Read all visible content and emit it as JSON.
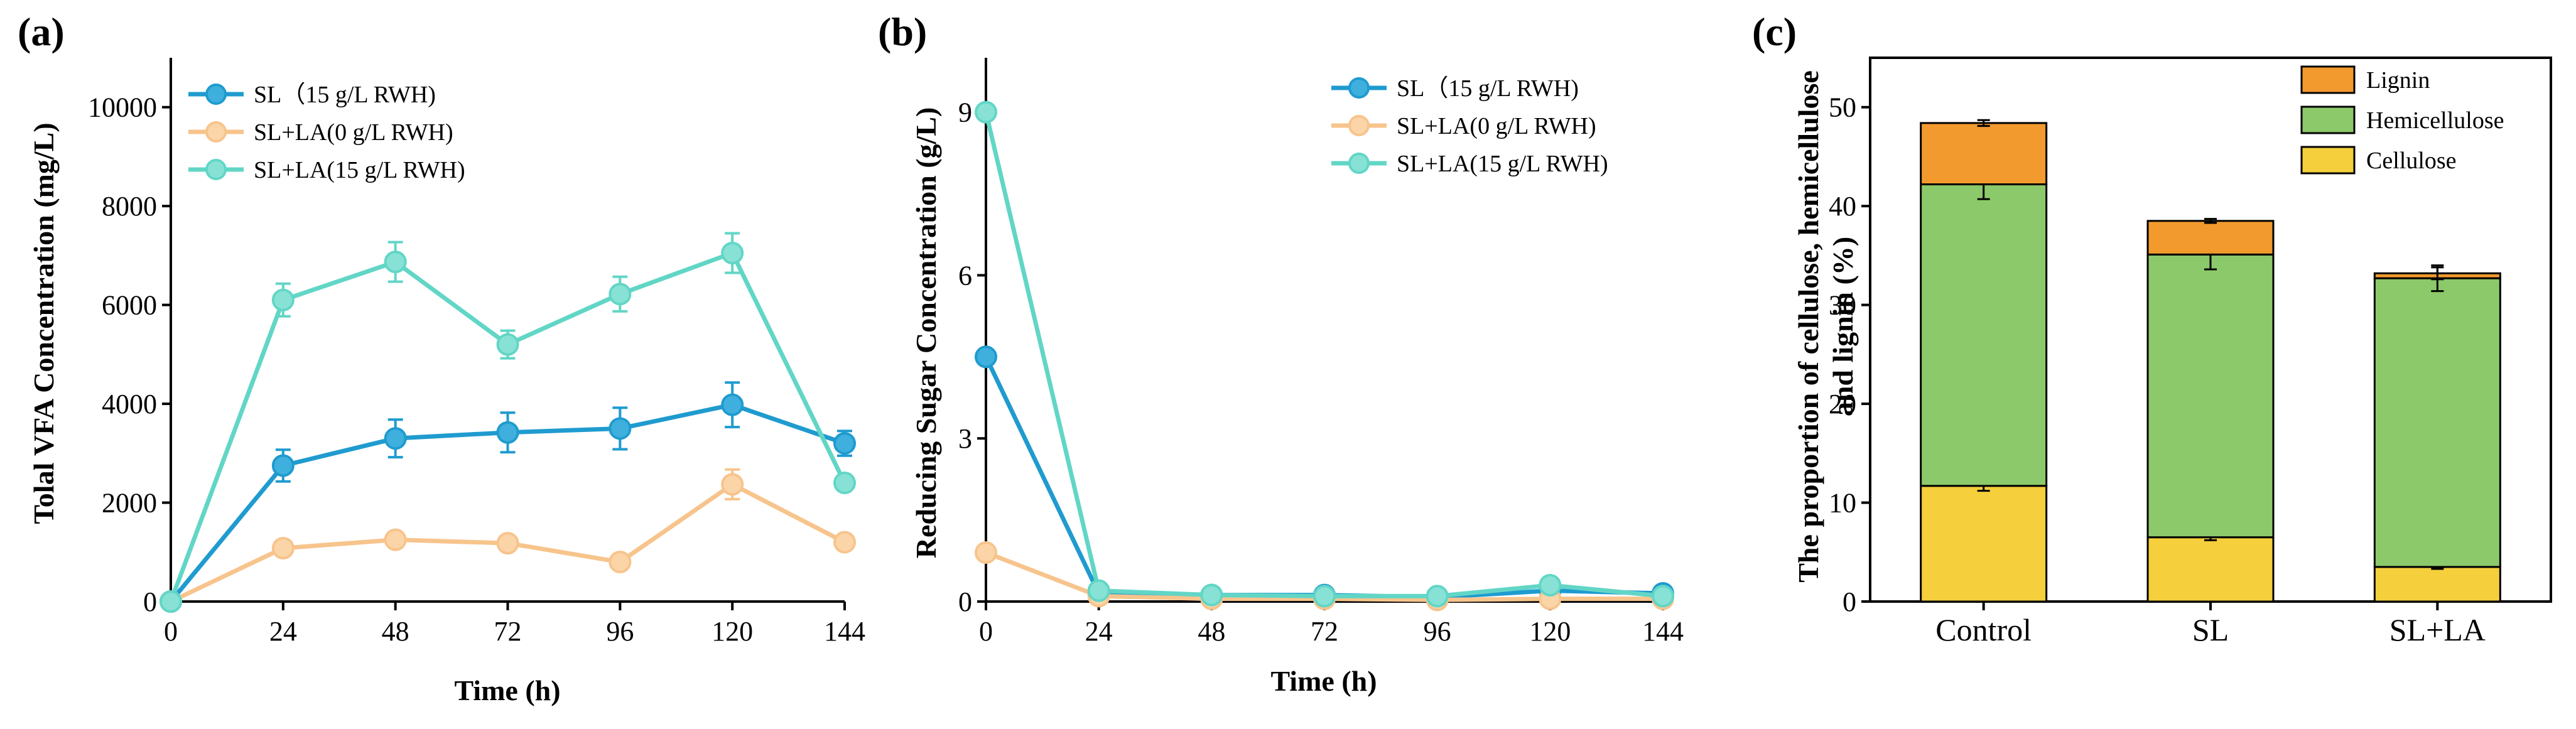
{
  "chart_data": [
    {
      "panel": "(a)",
      "type": "line",
      "xlabel": "Time (h)",
      "ylabel": "Tolal VFA Concentration (mg/L)",
      "x": [
        0,
        24,
        48,
        72,
        96,
        120,
        144
      ],
      "xticks": [
        "0",
        "24",
        "48",
        "72",
        "96",
        "120",
        "144"
      ],
      "xlim": [
        0,
        144
      ],
      "yticks": [
        "0",
        "2000",
        "4000",
        "6000",
        "8000",
        "10000"
      ],
      "ylim": [
        0,
        11000
      ],
      "legend_position": "top-left",
      "series": [
        {
          "name": "SL（15 g/L RWH)",
          "color": "#1f9bcf",
          "fill": "#3fb0dd",
          "values": [
            0,
            2750,
            3300,
            3420,
            3500,
            3980,
            3200
          ],
          "errors": [
            0,
            320,
            380,
            400,
            420,
            450,
            250
          ]
        },
        {
          "name": "SL+LA(0 g/L RWH)",
          "color": "#f7c48c",
          "fill": "#fbd5a8",
          "values": [
            0,
            1080,
            1250,
            1180,
            800,
            2370,
            1200
          ],
          "errors": [
            0,
            100,
            100,
            100,
            100,
            300,
            100
          ]
        },
        {
          "name": "SL+LA(15 g/L RWH)",
          "color": "#62d6c6",
          "fill": "#87e2d5",
          "values": [
            0,
            6100,
            6870,
            5200,
            6220,
            7050,
            2400
          ],
          "errors": [
            0,
            330,
            400,
            280,
            350,
            400,
            150
          ]
        }
      ]
    },
    {
      "panel": "(b)",
      "type": "line",
      "xlabel": "Time (h)",
      "ylabel": "Reducing Sugar Concentration (g/L)",
      "x": [
        0,
        24,
        48,
        72,
        96,
        120,
        144
      ],
      "xticks": [
        "0",
        "24",
        "48",
        "72",
        "96",
        "120",
        "144"
      ],
      "xlim": [
        0,
        144
      ],
      "yticks": [
        "0",
        "3",
        "6",
        "9"
      ],
      "ylim": [
        0,
        10
      ],
      "legend_position": "top-right",
      "series": [
        {
          "name": "SL（15 g/L RWH)",
          "color": "#1f9bcf",
          "fill": "#3fb0dd",
          "values": [
            4.5,
            0.15,
            0.12,
            0.12,
            0.08,
            0.2,
            0.15
          ],
          "errors": [
            0,
            0.05,
            0.03,
            0.03,
            0.03,
            0.05,
            0.03
          ]
        },
        {
          "name": "SL+LA(0 g/L RWH)",
          "color": "#f7c48c",
          "fill": "#fbd5a8",
          "values": [
            0.9,
            0.1,
            0.05,
            0.05,
            0.03,
            0.05,
            0.05
          ],
          "errors": [
            0,
            0.03,
            0.02,
            0.02,
            0.02,
            0.02,
            0.02
          ]
        },
        {
          "name": "SL+LA(15 g/L RWH)",
          "color": "#62d6c6",
          "fill": "#87e2d5",
          "values": [
            9.0,
            0.2,
            0.12,
            0.1,
            0.1,
            0.3,
            0.1
          ],
          "errors": [
            0,
            0.05,
            0.03,
            0.03,
            0.03,
            0.05,
            0.03
          ]
        }
      ]
    },
    {
      "panel": "(c)",
      "type": "bar",
      "stacked": true,
      "xlabel": "",
      "ylabel": "The proportion of cellulose, hemicellulose and lignin (%)",
      "ylabel_lines": [
        "The proportion of cellulose, hemicellulose",
        "and lignin (%)"
      ],
      "categories": [
        "Control",
        "SL",
        "SL+LA"
      ],
      "yticks": [
        "0",
        "10",
        "20",
        "30",
        "40",
        "50"
      ],
      "ylim": [
        0,
        55
      ],
      "legend_position": "top-right",
      "series": [
        {
          "name": "Cellulose",
          "color": "#f5cf3c",
          "values": [
            11.7,
            6.5,
            3.5
          ],
          "errors": [
            0.5,
            0.3,
            0.2
          ]
        },
        {
          "name": "Hemicellulose",
          "color": "#8cc96a",
          "values": [
            30.5,
            28.6,
            29.2
          ],
          "errors": [
            1.5,
            1.5,
            1.3
          ]
        },
        {
          "name": "Lignin",
          "color": "#f29a2e",
          "values": [
            6.2,
            3.4,
            0.5
          ],
          "errors": [
            0.3,
            0.2,
            0.6
          ]
        }
      ],
      "legend_order": [
        "Lignin",
        "Hemicellulose",
        "Cellulose"
      ]
    }
  ]
}
